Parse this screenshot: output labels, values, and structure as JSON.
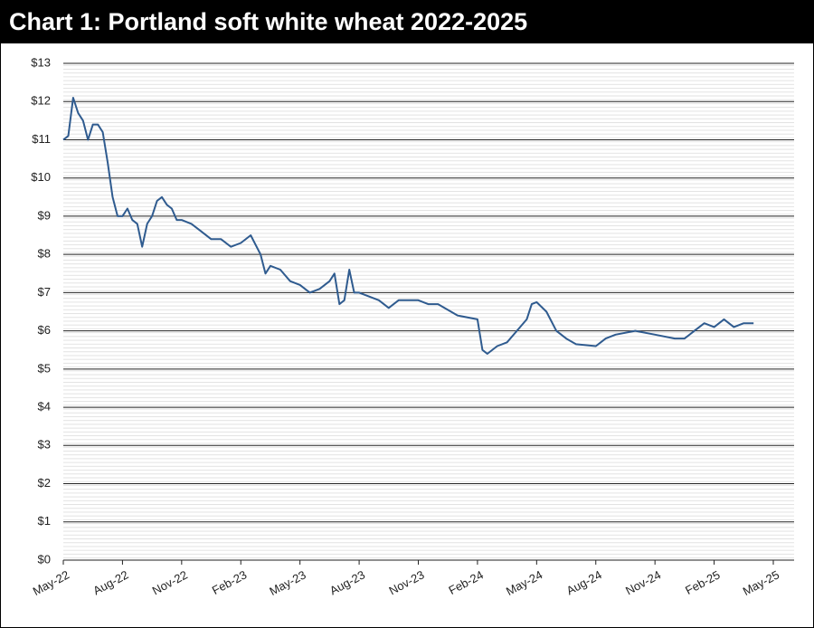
{
  "chart_data": {
    "type": "line",
    "title": "Chart 1: Portland soft white wheat 2022-2025",
    "xlim": [
      0,
      36
    ],
    "xticks": [
      {
        "value": 0,
        "label": "May-22"
      },
      {
        "value": 3,
        "label": "Aug-22"
      },
      {
        "value": 6,
        "label": "Nov-22"
      },
      {
        "value": 9,
        "label": "Feb-23"
      },
      {
        "value": 12,
        "label": "May-23"
      },
      {
        "value": 15,
        "label": "Aug-23"
      },
      {
        "value": 18,
        "label": "Nov-23"
      },
      {
        "value": 21,
        "label": "Feb-24"
      },
      {
        "value": 24,
        "label": "May-24"
      },
      {
        "value": 27,
        "label": "Aug-24"
      },
      {
        "value": 30,
        "label": "Nov-24"
      },
      {
        "value": 33,
        "label": "Feb-25"
      },
      {
        "value": 36,
        "label": "May-25"
      }
    ],
    "ylim": [
      0,
      13
    ],
    "yticks": [
      {
        "value": 0,
        "label": "$0"
      },
      {
        "value": 1,
        "label": "$1"
      },
      {
        "value": 2,
        "label": "$2"
      },
      {
        "value": 3,
        "label": "$3"
      },
      {
        "value": 4,
        "label": "$4"
      },
      {
        "value": 5,
        "label": "$5"
      },
      {
        "value": 6,
        "label": "$6"
      },
      {
        "value": 7,
        "label": "$7"
      },
      {
        "value": 8,
        "label": "$8"
      },
      {
        "value": 9,
        "label": "$9"
      },
      {
        "value": 10,
        "label": "$10"
      },
      {
        "value": 11,
        "label": "$11"
      },
      {
        "value": 12,
        "label": "$12"
      },
      {
        "value": 13,
        "label": "$13"
      }
    ],
    "grid": true,
    "series": [
      {
        "color": "#2f5b8f",
        "x": [
          0,
          0.25,
          0.5,
          0.75,
          1,
          1.25,
          1.5,
          1.75,
          2,
          2.25,
          2.5,
          2.75,
          3,
          3.25,
          3.5,
          3.75,
          4,
          4.25,
          4.5,
          4.75,
          5,
          5.25,
          5.5,
          5.75,
          6,
          6.5,
          7,
          7.5,
          8,
          8.5,
          9,
          9.5,
          10,
          10.25,
          10.5,
          11,
          11.5,
          12,
          12.5,
          13,
          13.5,
          13.75,
          14,
          14.25,
          14.5,
          14.75,
          15,
          16,
          16.5,
          17,
          18,
          18.5,
          19,
          20,
          21,
          21.25,
          21.5,
          22,
          22.5,
          23,
          23.5,
          23.75,
          24,
          24.5,
          25,
          25.5,
          26,
          27,
          27.5,
          28,
          29,
          30,
          31,
          31.5,
          32,
          32.5,
          33,
          33.5,
          34,
          34.5,
          35
        ],
        "values": [
          11.0,
          11.1,
          12.1,
          11.7,
          11.5,
          11.0,
          11.4,
          11.4,
          11.2,
          10.4,
          9.5,
          9.0,
          9.0,
          9.2,
          8.9,
          8.8,
          8.2,
          8.8,
          9.0,
          9.4,
          9.5,
          9.3,
          9.2,
          8.9,
          8.9,
          8.8,
          8.6,
          8.4,
          8.4,
          8.2,
          8.3,
          8.5,
          8.0,
          7.5,
          7.7,
          7.6,
          7.3,
          7.2,
          7.0,
          7.1,
          7.3,
          7.5,
          6.7,
          6.8,
          7.6,
          7.0,
          7.0,
          6.8,
          6.6,
          6.8,
          6.8,
          6.7,
          6.7,
          6.4,
          6.3,
          5.5,
          5.4,
          5.6,
          5.7,
          6.0,
          6.3,
          6.7,
          6.75,
          6.5,
          6.0,
          5.8,
          5.65,
          5.6,
          5.8,
          5.9,
          6.0,
          5.9,
          5.8,
          5.8,
          6.0,
          6.2,
          6.1,
          6.3,
          6.1,
          6.2,
          6.2
        ]
      }
    ]
  }
}
